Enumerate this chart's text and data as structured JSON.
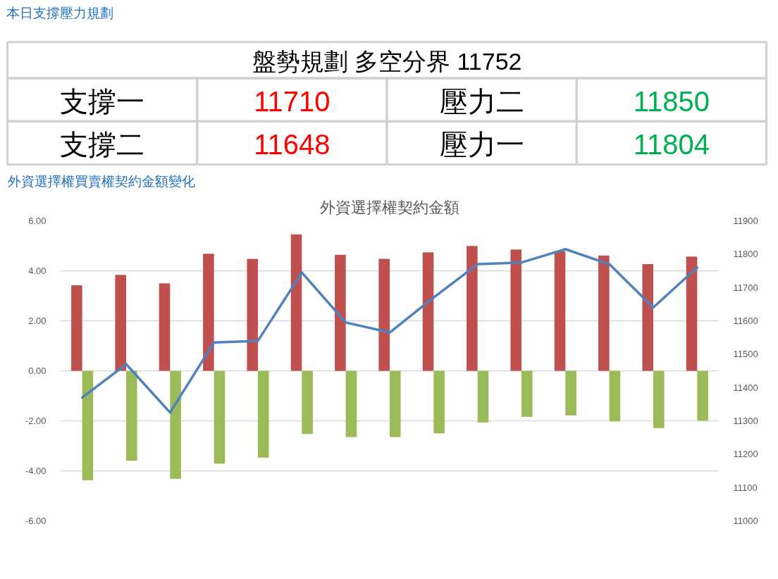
{
  "chart_data": [
    {
      "type": "other",
      "title": "本日支撐壓力規劃",
      "annotations": [
        "盤勢規劃 多空分界 11752",
        "支撐一",
        "11710",
        "壓力二",
        "11850",
        "支撐二",
        "11648",
        "壓力一",
        "11804"
      ],
      "colors": [
        "#000000",
        "#000000",
        "#ff0000",
        "#000000",
        "#00b050",
        "#000000",
        "#ff0000",
        "#000000",
        "#00b050"
      ]
    },
    {
      "type": "bar",
      "title": "外資選擇權買賣權契約金額變化",
      "subtitle": "外資選擇權契約金額",
      "categories": [
        null,
        null,
        null,
        null,
        null,
        null,
        null,
        null,
        null,
        null,
        null,
        null,
        null,
        null,
        null
      ],
      "series": [
        {
          "color": "#c0504d",
          "values": [
            3.42,
            3.84,
            3.5,
            4.68,
            4.48,
            5.46,
            4.64,
            4.48,
            4.74,
            4.99,
            4.85,
            4.79,
            4.61,
            4.27,
            4.57
          ]
        },
        {
          "color": "#9bbb59",
          "values": [
            -4.37,
            -3.59,
            -4.32,
            -3.71,
            -3.47,
            -2.53,
            -2.65,
            -2.65,
            -2.5,
            -2.06,
            -1.84,
            -1.78,
            -2.02,
            -2.29,
            -1.99
          ]
        },
        {
          "type": "line",
          "axis": "y2",
          "color": "#4f81bd",
          "values": [
            11370,
            11470,
            11325,
            11535,
            11540,
            11745,
            11595,
            11565,
            11670,
            11770,
            11775,
            11815,
            11770,
            11640,
            11760
          ]
        }
      ],
      "ylim": [
        -6,
        6
      ],
      "yticks": [
        {
          "value": -6,
          "label": "-6.00"
        },
        {
          "value": -4,
          "label": "-4.00"
        },
        {
          "value": -2,
          "label": "-2.00"
        },
        {
          "value": 0,
          "label": "0.00"
        },
        {
          "value": 2,
          "label": "2.00"
        },
        {
          "value": 4,
          "label": "4.00"
        },
        {
          "value": 6,
          "label": "6.00"
        }
      ],
      "y2lim": [
        11000,
        11900
      ],
      "y2ticks": [
        11000,
        11100,
        11200,
        11300,
        11400,
        11500,
        11600,
        11700,
        11800,
        11900
      ],
      "grid": "y"
    }
  ]
}
